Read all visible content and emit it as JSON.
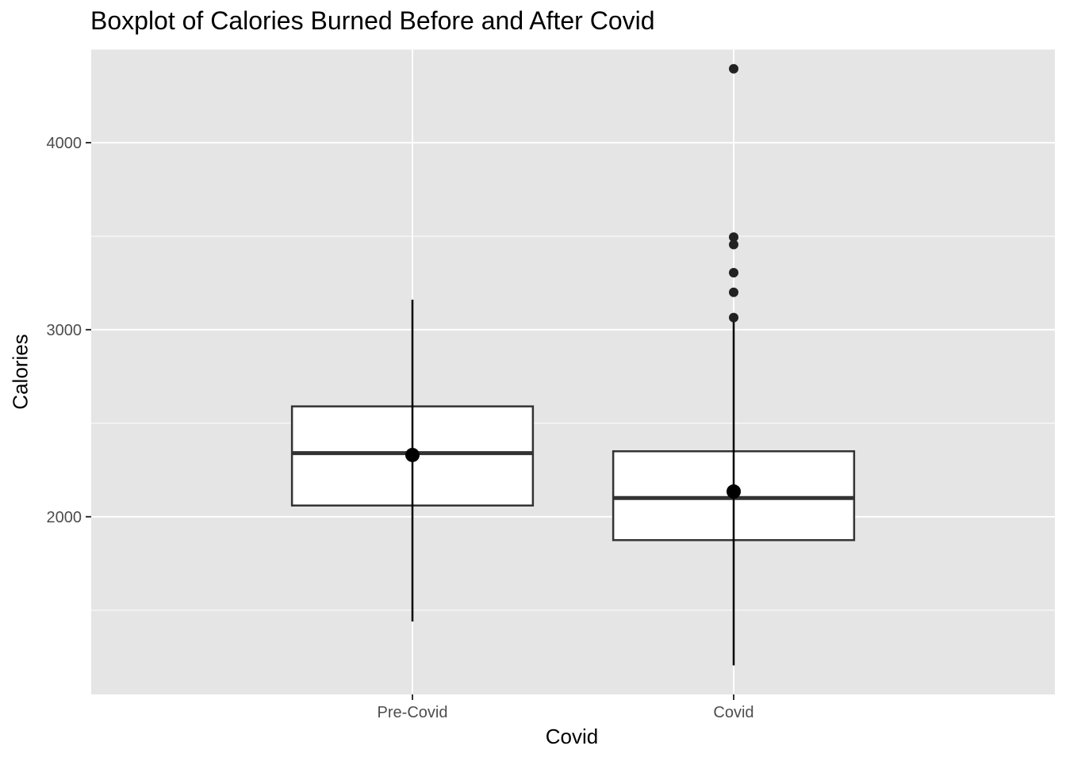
{
  "chart_data": {
    "type": "box",
    "title": "Boxplot of Calories Burned Before and After Covid",
    "xlabel": "Covid",
    "ylabel": "Calories",
    "categories": [
      "Pre-Covid",
      "Covid"
    ],
    "ylim": [
      1050,
      4500
    ],
    "yticks": [
      2000,
      3000,
      4000
    ],
    "yticks_labels": [
      "2000",
      "3000",
      "4000"
    ],
    "grid": true,
    "panel_background": "#e5e5e5",
    "grid_color": "#ffffff",
    "box_fill": "#ffffff",
    "box_stroke": "#333333",
    "boxes": [
      {
        "category": "Pre-Covid",
        "lower_whisker": 1610,
        "q1": 2060,
        "median": 2340,
        "q3": 2590,
        "upper_whisker": 3040,
        "outliers": [],
        "mean": 2330,
        "error_bar": [
          1440,
          3160
        ]
      },
      {
        "category": "Covid",
        "lower_whisker": 1360,
        "q1": 1875,
        "median": 2100,
        "q3": 2350,
        "upper_whisker": 3040,
        "outliers": [
          3065,
          3200,
          3305,
          3455,
          3495,
          4395
        ],
        "mean": 2135,
        "error_bar": [
          1205,
          3040
        ]
      }
    ]
  }
}
